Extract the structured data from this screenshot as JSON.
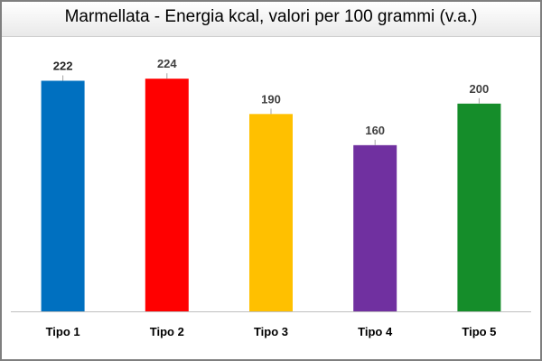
{
  "chart_data": {
    "type": "bar",
    "title": "Marmellata - Energia kcal, valori per 100 grammi (v.a.)",
    "categories": [
      "Tipo 1",
      "Tipo 2",
      "Tipo 3",
      "Tipo 4",
      "Tipo 5"
    ],
    "values": [
      222,
      224,
      190,
      160,
      200
    ],
    "colors": [
      "#0070c0",
      "#ff0000",
      "#ffc000",
      "#7030a0",
      "#158d2a"
    ],
    "ylim": [
      0,
      265
    ],
    "xlabel": "",
    "ylabel": "",
    "grid": false,
    "legend": "none"
  }
}
